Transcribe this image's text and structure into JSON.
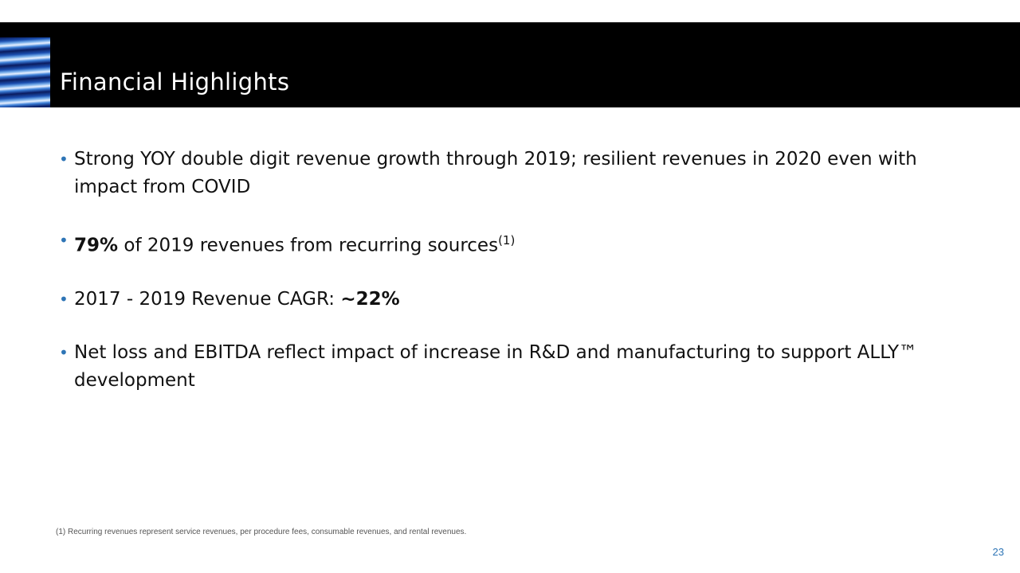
{
  "header": {
    "title": "Financial Highlights",
    "image": "blue-striped-banner"
  },
  "bullets": [
    {
      "text": "Strong YOY double digit revenue growth through 2019; resilient revenues in 2020 even with impact from COVID"
    },
    {
      "bold": "79%",
      "text": " of 2019 revenues from recurring sources",
      "sup": "(1)"
    },
    {
      "text": "2017 - 2019 Revenue CAGR: ",
      "bold": "~22%"
    },
    {
      "text": "Net loss and EBITDA reflect impact of increase in R&D and manufacturing to support ALLY™ development"
    }
  ],
  "footnote": "(1) Recurring revenues represent service revenues, per procedure fees, consumable revenues, and rental revenues.",
  "page_number": "23",
  "colors": {
    "accent": "#2e75b6",
    "header_bg": "#000000"
  }
}
